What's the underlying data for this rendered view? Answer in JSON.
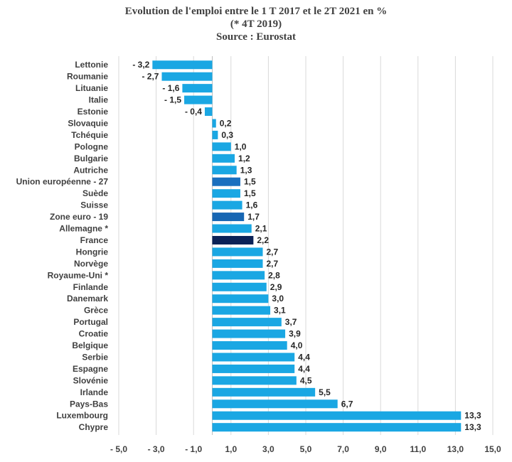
{
  "chart_data": {
    "type": "bar",
    "orientation": "horizontal",
    "title": "Evolution de l'emploi entre le 1 T 2017 et le 2T 2021 en %",
    "subtitle": "(* 4T 2019)",
    "source": "Source : Eurostat",
    "xlim": [
      -5,
      15
    ],
    "x_ticks": [
      -5,
      -3,
      -1,
      1,
      3,
      5,
      7,
      9,
      11,
      13,
      15
    ],
    "x_tick_labels": [
      "- 5,0",
      "- 3,0",
      "- 1,0",
      "1,0",
      "3,0",
      "5,0",
      "7,0",
      "9,0",
      "11,0",
      "13,0",
      "15,0"
    ],
    "grid": "vertical",
    "colors": {
      "default": "#1aa7e3",
      "eu": "#1a6fbf",
      "euro": "#1766b3",
      "france": "#0b2257",
      "grid": "#d9d9d9"
    },
    "categories": [
      {
        "label": "Lettonie",
        "value": -3.2,
        "value_label": "- 3,2",
        "color": "default"
      },
      {
        "label": "Roumanie",
        "value": -2.7,
        "value_label": "- 2,7",
        "color": "default"
      },
      {
        "label": "Lituanie",
        "value": -1.6,
        "value_label": "- 1,6",
        "color": "default"
      },
      {
        "label": "Italie",
        "value": -1.5,
        "value_label": "- 1,5",
        "color": "default"
      },
      {
        "label": "Estonie",
        "value": -0.4,
        "value_label": "- 0,4",
        "color": "default"
      },
      {
        "label": "Slovaquie",
        "value": 0.2,
        "value_label": "0,2",
        "color": "default"
      },
      {
        "label": "Tchéquie",
        "value": 0.3,
        "value_label": "0,3",
        "color": "default"
      },
      {
        "label": "Pologne",
        "value": 1.0,
        "value_label": "1,0",
        "color": "default"
      },
      {
        "label": "Bulgarie",
        "value": 1.2,
        "value_label": "1,2",
        "color": "default"
      },
      {
        "label": "Autriche",
        "value": 1.3,
        "value_label": "1,3",
        "color": "default"
      },
      {
        "label": "Union européenne - 27",
        "value": 1.5,
        "value_label": "1,5",
        "color": "eu"
      },
      {
        "label": "Suède",
        "value": 1.5,
        "value_label": "1,5",
        "color": "default"
      },
      {
        "label": "Suisse",
        "value": 1.6,
        "value_label": "1,6",
        "color": "default"
      },
      {
        "label": "Zone euro - 19",
        "value": 1.7,
        "value_label": "1,7",
        "color": "euro"
      },
      {
        "label": "Allemagne *",
        "value": 2.1,
        "value_label": "2,1",
        "color": "default"
      },
      {
        "label": "France",
        "value": 2.2,
        "value_label": "2,2",
        "color": "france"
      },
      {
        "label": "Hongrie",
        "value": 2.7,
        "value_label": "2,7",
        "color": "default"
      },
      {
        "label": "Norvège",
        "value": 2.7,
        "value_label": "2,7",
        "color": "default"
      },
      {
        "label": "Royaume-Uni *",
        "value": 2.8,
        "value_label": "2,8",
        "color": "default"
      },
      {
        "label": "Finlande",
        "value": 2.9,
        "value_label": "2,9",
        "color": "default"
      },
      {
        "label": "Danemark",
        "value": 3.0,
        "value_label": "3,0",
        "color": "default"
      },
      {
        "label": "Grèce",
        "value": 3.1,
        "value_label": "3,1",
        "color": "default"
      },
      {
        "label": "Portugal",
        "value": 3.7,
        "value_label": "3,7",
        "color": "default"
      },
      {
        "label": "Croatie",
        "value": 3.9,
        "value_label": "3,9",
        "color": "default"
      },
      {
        "label": "Belgique",
        "value": 4.0,
        "value_label": "4,0",
        "color": "default"
      },
      {
        "label": "Serbie",
        "value": 4.4,
        "value_label": "4,4",
        "color": "default"
      },
      {
        "label": "Espagne",
        "value": 4.4,
        "value_label": "4,4",
        "color": "default"
      },
      {
        "label": "Slovénie",
        "value": 4.5,
        "value_label": "4,5",
        "color": "default"
      },
      {
        "label": "Irlande",
        "value": 5.5,
        "value_label": "5,5",
        "color": "default"
      },
      {
        "label": "Pays-Bas",
        "value": 6.7,
        "value_label": "6,7",
        "color": "default"
      },
      {
        "label": "Luxembourg",
        "value": 13.3,
        "value_label": "13,3",
        "color": "default"
      },
      {
        "label": "Chypre",
        "value": 13.3,
        "value_label": "13,3",
        "color": "default"
      }
    ]
  }
}
